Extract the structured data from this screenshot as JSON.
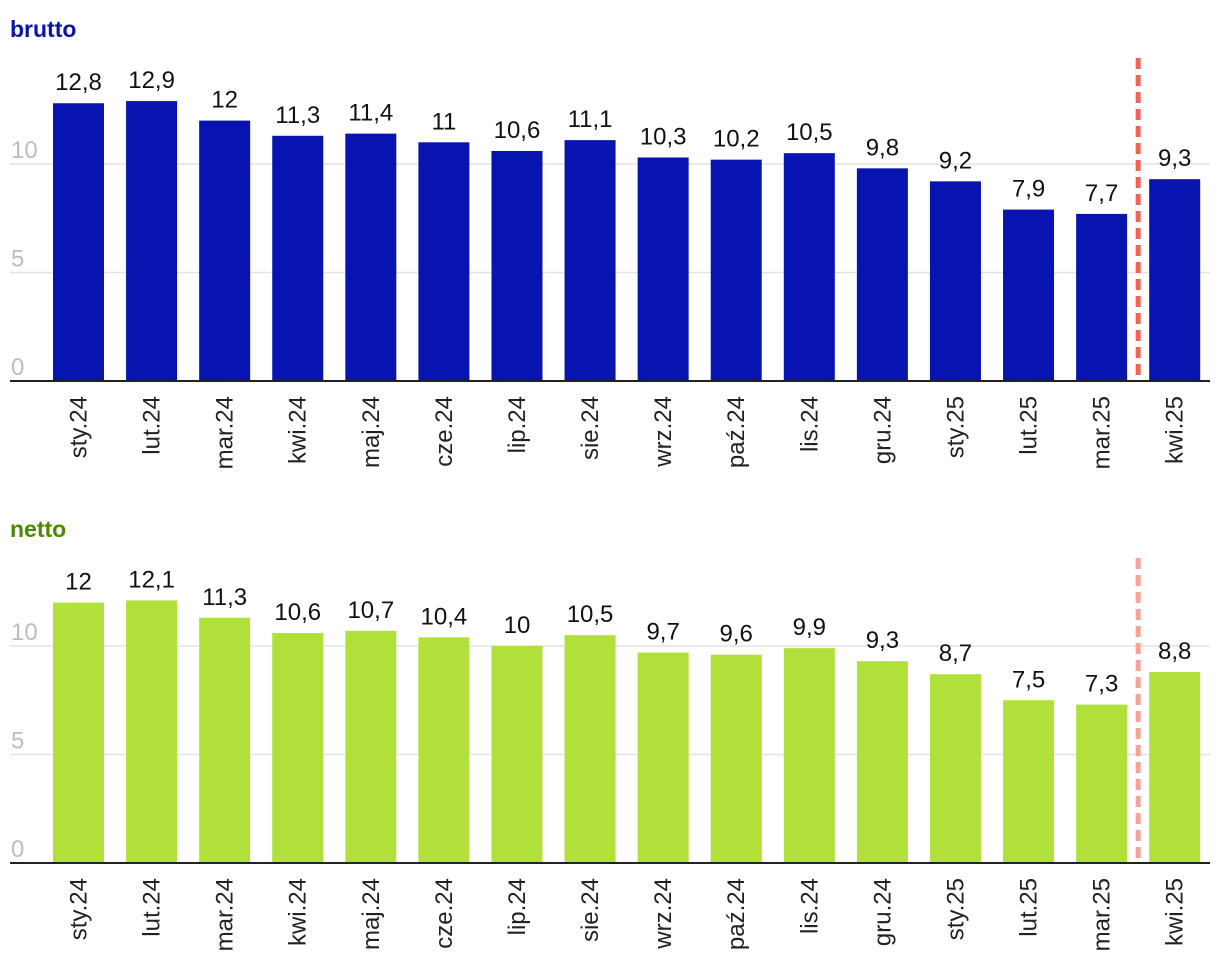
{
  "chart_data": [
    {
      "type": "bar",
      "title": "brutto",
      "title_color": "#0714b0",
      "bar_color": "#0714b0",
      "divider_color": "#f26355",
      "categories": [
        "sty.24",
        "lut.24",
        "mar.24",
        "kwi.24",
        "maj.24",
        "cze.24",
        "lip.24",
        "sie.24",
        "wrz.24",
        "paź.24",
        "lis.24",
        "gru.24",
        "sty.25",
        "lut.25",
        "mar.25",
        "kwi.25"
      ],
      "values": [
        12.8,
        12.9,
        12,
        11.3,
        11.4,
        11,
        10.6,
        11.1,
        10.3,
        10.2,
        10.5,
        9.8,
        9.2,
        7.9,
        7.7,
        9.3
      ],
      "value_labels": [
        "12,8",
        "12,9",
        "12",
        "11,3",
        "11,4",
        "11",
        "10,6",
        "11,1",
        "10,3",
        "10,2",
        "10,5",
        "9,8",
        "9,2",
        "7,9",
        "7,7",
        "9,3"
      ],
      "yticks": [
        0,
        5,
        10
      ],
      "ylim": [
        0,
        15
      ],
      "grid": true,
      "divider_after_category": "mar.25"
    },
    {
      "type": "bar",
      "title": "netto",
      "title_color": "#4b8a00",
      "bar_color": "#b2e03a",
      "divider_color": "#f7a29b",
      "categories": [
        "sty.24",
        "lut.24",
        "mar.24",
        "kwi.24",
        "maj.24",
        "cze.24",
        "lip.24",
        "sie.24",
        "wrz.24",
        "paź.24",
        "lis.24",
        "gru.24",
        "sty.25",
        "lut.25",
        "mar.25",
        "kwi.25"
      ],
      "values": [
        12,
        12.1,
        11.3,
        10.6,
        10.7,
        10.4,
        10,
        10.5,
        9.7,
        9.6,
        9.9,
        9.3,
        8.7,
        7.5,
        7.3,
        8.8
      ],
      "value_labels": [
        "12",
        "12,1",
        "11,3",
        "10,6",
        "10,7",
        "10,4",
        "10",
        "10,5",
        "9,7",
        "9,6",
        "9,9",
        "9,3",
        "8,7",
        "7,5",
        "7,3",
        "8,8"
      ],
      "yticks": [
        0,
        5,
        10
      ],
      "ylim": [
        0,
        15
      ],
      "grid": true,
      "divider_after_category": "mar.25"
    }
  ]
}
